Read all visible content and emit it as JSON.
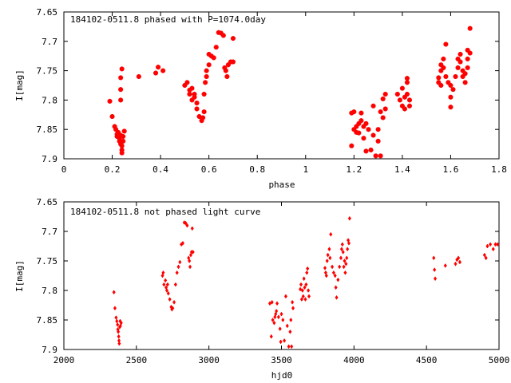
{
  "chart_data": [
    {
      "type": "scatter",
      "title": "184102-0511.8 phased with P=1074.0day",
      "xlabel": "phase",
      "ylabel": "I[mag]",
      "xlim": [
        0,
        1.8
      ],
      "ylim": [
        7.65,
        7.9
      ],
      "y_inverted": true,
      "grid": false,
      "legend": "none",
      "marker": "star",
      "color": "#ff0000",
      "x_ticks": [
        "0",
        "0.2",
        "0.4",
        "0.6",
        "0.8",
        "1",
        "1.2",
        "1.4",
        "1.6",
        "1.8"
      ],
      "y_ticks": [
        "7.65",
        "7.7",
        "7.75",
        "7.8",
        "7.85",
        "7.9"
      ],
      "points": [
        [
          0.19,
          7.802
        ],
        [
          0.2,
          7.828
        ],
        [
          0.21,
          7.845
        ],
        [
          0.215,
          7.85
        ],
        [
          0.22,
          7.858
        ],
        [
          0.22,
          7.862
        ],
        [
          0.225,
          7.855
        ],
        [
          0.23,
          7.87
        ],
        [
          0.23,
          7.865
        ],
        [
          0.235,
          7.86
        ],
        [
          0.235,
          7.875
        ],
        [
          0.24,
          7.878
        ],
        [
          0.24,
          7.885
        ],
        [
          0.24,
          7.89
        ],
        [
          0.245,
          7.87
        ],
        [
          0.245,
          7.862
        ],
        [
          0.25,
          7.853
        ],
        [
          0.235,
          7.8
        ],
        [
          0.235,
          7.782
        ],
        [
          0.235,
          7.762
        ],
        [
          0.24,
          7.747
        ],
        [
          0.31,
          7.76
        ],
        [
          0.38,
          7.754
        ],
        [
          0.39,
          7.744
        ],
        [
          0.41,
          7.75
        ],
        [
          0.5,
          7.775
        ],
        [
          0.51,
          7.77
        ],
        [
          0.52,
          7.79
        ],
        [
          0.52,
          7.783
        ],
        [
          0.53,
          7.78
        ],
        [
          0.53,
          7.8
        ],
        [
          0.54,
          7.795
        ],
        [
          0.54,
          7.79
        ],
        [
          0.55,
          7.805
        ],
        [
          0.55,
          7.815
        ],
        [
          0.56,
          7.828
        ],
        [
          0.57,
          7.835
        ],
        [
          0.575,
          7.83
        ],
        [
          0.58,
          7.82
        ],
        [
          0.58,
          7.79
        ],
        [
          0.585,
          7.77
        ],
        [
          0.59,
          7.76
        ],
        [
          0.59,
          7.75
        ],
        [
          0.6,
          7.74
        ],
        [
          0.6,
          7.722
        ],
        [
          0.61,
          7.725
        ],
        [
          0.62,
          7.728
        ],
        [
          0.63,
          7.71
        ],
        [
          0.64,
          7.685
        ],
        [
          0.65,
          7.686
        ],
        [
          0.66,
          7.69
        ],
        [
          0.665,
          7.745
        ],
        [
          0.67,
          7.75
        ],
        [
          0.675,
          7.76
        ],
        [
          0.68,
          7.74
        ],
        [
          0.69,
          7.735
        ],
        [
          0.7,
          7.695
        ],
        [
          0.7,
          7.735
        ],
        [
          1.19,
          7.822
        ],
        [
          1.19,
          7.878
        ],
        [
          1.2,
          7.82
        ],
        [
          1.2,
          7.85
        ],
        [
          1.21,
          7.855
        ],
        [
          1.21,
          7.845
        ],
        [
          1.22,
          7.856
        ],
        [
          1.22,
          7.84
        ],
        [
          1.23,
          7.835
        ],
        [
          1.23,
          7.822
        ],
        [
          1.24,
          7.845
        ],
        [
          1.24,
          7.865
        ],
        [
          1.25,
          7.887
        ],
        [
          1.25,
          7.84
        ],
        [
          1.26,
          7.85
        ],
        [
          1.27,
          7.885
        ],
        [
          1.28,
          7.81
        ],
        [
          1.28,
          7.86
        ],
        [
          1.29,
          7.895
        ],
        [
          1.3,
          7.87
        ],
        [
          1.3,
          7.85
        ],
        [
          1.31,
          7.895
        ],
        [
          1.31,
          7.82
        ],
        [
          1.32,
          7.83
        ],
        [
          1.32,
          7.798
        ],
        [
          1.33,
          7.79
        ],
        [
          1.33,
          7.815
        ],
        [
          1.38,
          7.79
        ],
        [
          1.39,
          7.8
        ],
        [
          1.4,
          7.81
        ],
        [
          1.4,
          7.78
        ],
        [
          1.41,
          7.795
        ],
        [
          1.41,
          7.815
        ],
        [
          1.42,
          7.79
        ],
        [
          1.42,
          7.77
        ],
        [
          1.42,
          7.763
        ],
        [
          1.43,
          7.8
        ],
        [
          1.43,
          7.81
        ],
        [
          1.55,
          7.762
        ],
        [
          1.55,
          7.77
        ],
        [
          1.56,
          7.775
        ],
        [
          1.56,
          7.75
        ],
        [
          1.56,
          7.74
        ],
        [
          1.57,
          7.73
        ],
        [
          1.57,
          7.745
        ],
        [
          1.58,
          7.705
        ],
        [
          1.58,
          7.76
        ],
        [
          1.59,
          7.77
        ],
        [
          1.6,
          7.775
        ],
        [
          1.6,
          7.795
        ],
        [
          1.6,
          7.812
        ],
        [
          1.61,
          7.782
        ],
        [
          1.62,
          7.76
        ],
        [
          1.63,
          7.745
        ],
        [
          1.63,
          7.73
        ],
        [
          1.64,
          7.722
        ],
        [
          1.64,
          7.735
        ],
        [
          1.65,
          7.76
        ],
        [
          1.65,
          7.75
        ],
        [
          1.66,
          7.77
        ],
        [
          1.66,
          7.755
        ],
        [
          1.67,
          7.745
        ],
        [
          1.67,
          7.73
        ],
        [
          1.67,
          7.715
        ],
        [
          1.68,
          7.72
        ],
        [
          1.68,
          7.678
        ]
      ]
    },
    {
      "type": "scatter",
      "title": "184102-0511.8 not phased light curve",
      "xlabel": "hjd0",
      "ylabel": "I[mag]",
      "xlim": [
        2000,
        5000
      ],
      "ylim": [
        7.65,
        7.9
      ],
      "y_inverted": true,
      "grid": false,
      "legend": "none",
      "marker": "diamond",
      "color": "#ff0000",
      "x_ticks": [
        "2000",
        "2500",
        "3000",
        "3500",
        "4000",
        "4500",
        "5000"
      ],
      "y_ticks": [
        "7.65",
        "7.7",
        "7.75",
        "7.8",
        "7.85",
        "7.9"
      ],
      "points": [
        [
          2345,
          7.803
        ],
        [
          2352,
          7.83
        ],
        [
          2360,
          7.846
        ],
        [
          2365,
          7.852
        ],
        [
          2370,
          7.858
        ],
        [
          2372,
          7.866
        ],
        [
          2375,
          7.87
        ],
        [
          2378,
          7.878
        ],
        [
          2380,
          7.885
        ],
        [
          2382,
          7.89
        ],
        [
          2385,
          7.862
        ],
        [
          2388,
          7.852
        ],
        [
          2390,
          7.86
        ],
        [
          2395,
          7.855
        ],
        [
          2680,
          7.775
        ],
        [
          2685,
          7.77
        ],
        [
          2690,
          7.79
        ],
        [
          2700,
          7.783
        ],
        [
          2705,
          7.795
        ],
        [
          2710,
          7.8
        ],
        [
          2715,
          7.79
        ],
        [
          2720,
          7.805
        ],
        [
          2730,
          7.815
        ],
        [
          2740,
          7.828
        ],
        [
          2745,
          7.832
        ],
        [
          2750,
          7.83
        ],
        [
          2760,
          7.82
        ],
        [
          2770,
          7.79
        ],
        [
          2780,
          7.77
        ],
        [
          2790,
          7.76
        ],
        [
          2800,
          7.752
        ],
        [
          2810,
          7.722
        ],
        [
          2820,
          7.72
        ],
        [
          2830,
          7.685
        ],
        [
          2840,
          7.686
        ],
        [
          2850,
          7.69
        ],
        [
          2860,
          7.745
        ],
        [
          2865,
          7.75
        ],
        [
          2870,
          7.76
        ],
        [
          2875,
          7.74
        ],
        [
          2880,
          7.735
        ],
        [
          2885,
          7.695
        ],
        [
          2890,
          7.735
        ],
        [
          3420,
          7.822
        ],
        [
          3430,
          7.878
        ],
        [
          3435,
          7.82
        ],
        [
          3440,
          7.85
        ],
        [
          3450,
          7.855
        ],
        [
          3455,
          7.845
        ],
        [
          3460,
          7.84
        ],
        [
          3465,
          7.835
        ],
        [
          3470,
          7.822
        ],
        [
          3480,
          7.845
        ],
        [
          3490,
          7.865
        ],
        [
          3495,
          7.887
        ],
        [
          3500,
          7.84
        ],
        [
          3510,
          7.85
        ],
        [
          3520,
          7.885
        ],
        [
          3530,
          7.81
        ],
        [
          3540,
          7.86
        ],
        [
          3550,
          7.895
        ],
        [
          3560,
          7.87
        ],
        [
          3565,
          7.85
        ],
        [
          3570,
          7.895
        ],
        [
          3575,
          7.82
        ],
        [
          3580,
          7.83
        ],
        [
          3630,
          7.798
        ],
        [
          3635,
          7.79
        ],
        [
          3640,
          7.815
        ],
        [
          3645,
          7.8
        ],
        [
          3650,
          7.81
        ],
        [
          3655,
          7.78
        ],
        [
          3660,
          7.795
        ],
        [
          3665,
          7.815
        ],
        [
          3670,
          7.79
        ],
        [
          3675,
          7.77
        ],
        [
          3680,
          7.763
        ],
        [
          3685,
          7.8
        ],
        [
          3690,
          7.81
        ],
        [
          3800,
          7.762
        ],
        [
          3805,
          7.77
        ],
        [
          3810,
          7.775
        ],
        [
          3815,
          7.75
        ],
        [
          3820,
          7.74
        ],
        [
          3830,
          7.73
        ],
        [
          3835,
          7.745
        ],
        [
          3840,
          7.705
        ],
        [
          3850,
          7.76
        ],
        [
          3860,
          7.77
        ],
        [
          3870,
          7.775
        ],
        [
          3875,
          7.795
        ],
        [
          3880,
          7.812
        ],
        [
          3890,
          7.782
        ],
        [
          3900,
          7.76
        ],
        [
          3910,
          7.745
        ],
        [
          3915,
          7.73
        ],
        [
          3920,
          7.722
        ],
        [
          3925,
          7.735
        ],
        [
          3930,
          7.76
        ],
        [
          3935,
          7.75
        ],
        [
          3940,
          7.77
        ],
        [
          3945,
          7.755
        ],
        [
          3950,
          7.745
        ],
        [
          3955,
          7.73
        ],
        [
          3960,
          7.715
        ],
        [
          3965,
          7.72
        ],
        [
          3970,
          7.678
        ],
        [
          4550,
          7.745
        ],
        [
          4555,
          7.765
        ],
        [
          4560,
          7.78
        ],
        [
          4630,
          7.758
        ],
        [
          4700,
          7.755
        ],
        [
          4710,
          7.748
        ],
        [
          4720,
          7.745
        ],
        [
          4730,
          7.752
        ],
        [
          4900,
          7.74
        ],
        [
          4910,
          7.745
        ],
        [
          4920,
          7.725
        ],
        [
          4940,
          7.722
        ],
        [
          4960,
          7.73
        ],
        [
          4975,
          7.722
        ],
        [
          4990,
          7.722
        ]
      ]
    }
  ]
}
